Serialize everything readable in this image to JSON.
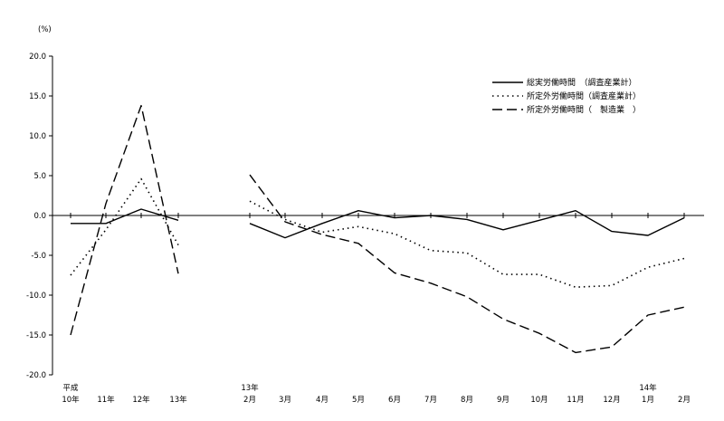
{
  "chart_data": {
    "type": "line",
    "unit_label": "(%)",
    "ylim": [
      -20,
      20
    ],
    "yticks": [
      {
        "v": 20,
        "label": "20.0"
      },
      {
        "v": 15,
        "label": "15.0"
      },
      {
        "v": 10,
        "label": "10.0"
      },
      {
        "v": 5,
        "label": "5.0"
      },
      {
        "v": 0,
        "label": "0.0"
      },
      {
        "v": -5,
        "label": "-5.0"
      },
      {
        "v": -10,
        "label": "-10.0"
      },
      {
        "v": -15,
        "label": "-15.0"
      },
      {
        "v": -20,
        "label": "-20.0"
      }
    ],
    "annual": {
      "categories": [
        {
          "top": "平成",
          "bottom": "10年"
        },
        {
          "top": "",
          "bottom": "11年"
        },
        {
          "top": "",
          "bottom": "12年"
        },
        {
          "top": "",
          "bottom": "13年"
        }
      ]
    },
    "monthly": {
      "categories": [
        {
          "top": "13年",
          "bottom": "2月"
        },
        {
          "top": "",
          "bottom": "3月"
        },
        {
          "top": "",
          "bottom": "4月"
        },
        {
          "top": "",
          "bottom": "5月"
        },
        {
          "top": "",
          "bottom": "6月"
        },
        {
          "top": "",
          "bottom": "7月"
        },
        {
          "top": "",
          "bottom": "8月"
        },
        {
          "top": "",
          "bottom": "9月"
        },
        {
          "top": "",
          "bottom": "10月"
        },
        {
          "top": "",
          "bottom": "11月"
        },
        {
          "top": "",
          "bottom": "12月"
        },
        {
          "top": "14年",
          "bottom": "1月"
        },
        {
          "top": "",
          "bottom": "2月"
        }
      ]
    },
    "series": [
      {
        "name": "総実労働時間　（調査産業計）",
        "style": "solid",
        "annual": [
          -1.0,
          -1.0,
          0.8,
          -0.6
        ],
        "monthly": [
          -1.0,
          -2.8,
          -1.0,
          0.6,
          -0.3,
          0.0,
          -0.5,
          -1.8,
          -0.6,
          0.6,
          -2.0,
          -2.5,
          -0.3
        ]
      },
      {
        "name": "所定外労働時間（調査産業計）",
        "style": "dotted",
        "annual": [
          -7.5,
          -1.8,
          4.6,
          -3.7
        ],
        "monthly": [
          1.8,
          -0.5,
          -2.1,
          -1.4,
          -2.3,
          -4.4,
          -4.7,
          -7.4,
          -7.4,
          -9.0,
          -8.8,
          -6.5,
          -5.4
        ]
      },
      {
        "name": "所定外労働時間（　製造業　）",
        "style": "dashed",
        "annual": [
          -15.0,
          1.5,
          13.8,
          -7.3
        ],
        "monthly": [
          5.1,
          -0.8,
          -2.4,
          -3.5,
          -7.2,
          -8.5,
          -10.2,
          -13.0,
          -14.8,
          -17.2,
          -16.5,
          -12.5,
          -11.5
        ]
      }
    ],
    "legend_position": "top-right"
  }
}
